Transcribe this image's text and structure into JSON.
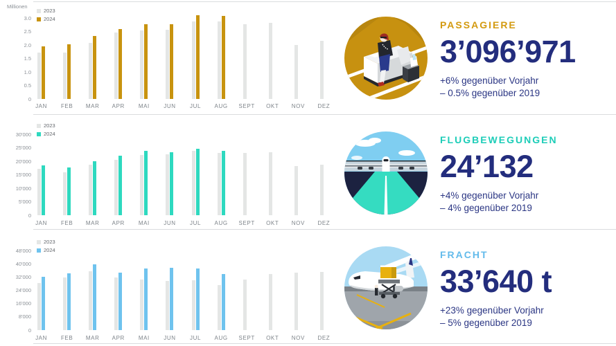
{
  "colors": {
    "bar_2023": "#e4e6e5",
    "gold": "#c8930f",
    "teal": "#2ed9bf",
    "blue": "#6fc3ee",
    "navy": "#232d7d",
    "separator": "#dadcde"
  },
  "chart_data": [
    {
      "type": "bar",
      "id": "passengers",
      "unit_label": "Millionen",
      "legend": [
        "2023",
        "2024"
      ],
      "y_ticks": [
        "3.0",
        "2.5",
        "2.0",
        "1.5",
        "1.0",
        "0.5",
        "0"
      ],
      "y_max": 3.0,
      "bar_color_2024": "#c8930f",
      "categories": [
        "JAN",
        "FEB",
        "MAR",
        "APR",
        "MAI",
        "JUN",
        "JUL",
        "AUG",
        "SEPT",
        "OKT",
        "NOV",
        "DEZ"
      ],
      "series": [
        {
          "name": "2023",
          "values": [
            1.72,
            1.73,
            2.08,
            2.45,
            2.54,
            2.57,
            2.88,
            2.86,
            2.78,
            2.82,
            2.0,
            2.15
          ]
        },
        {
          "name": "2024",
          "values": [
            1.96,
            2.02,
            2.33,
            2.6,
            2.77,
            2.76,
            3.1,
            3.07,
            null,
            null,
            null,
            null
          ]
        }
      ]
    },
    {
      "type": "bar",
      "id": "flight-movements",
      "unit_label": "",
      "legend": [
        "2023",
        "2024"
      ],
      "y_ticks": [
        "30'000",
        "25'000",
        "20'000",
        "15'000",
        "10'000",
        "5'000",
        "0"
      ],
      "y_max": 30000,
      "bar_color_2024": "#2ed9bf",
      "categories": [
        "JAN",
        "FEB",
        "MAR",
        "APR",
        "MAI",
        "JUN",
        "JUL",
        "AUG",
        "SEPT",
        "OKT",
        "NOV",
        "DEZ"
      ],
      "series": [
        {
          "name": "2023",
          "values": [
            17100,
            15800,
            18700,
            20500,
            22200,
            22500,
            23800,
            23000,
            23000,
            23300,
            18200,
            18700
          ]
        },
        {
          "name": "2024",
          "values": [
            18400,
            17800,
            20100,
            22000,
            23800,
            23400,
            24600,
            23800,
            null,
            null,
            null,
            null
          ]
        }
      ]
    },
    {
      "type": "bar",
      "id": "freight",
      "unit_label": "",
      "legend": [
        "2023",
        "2024"
      ],
      "y_ticks": [
        "48'000",
        "40'000",
        "32'000",
        "24'000",
        "16'000",
        "8'000",
        "0"
      ],
      "y_max": 48000,
      "bar_color_2024": "#6fc3ee",
      "categories": [
        "JAN",
        "FEB",
        "MAR",
        "APR",
        "MAI",
        "JUN",
        "JUL",
        "AUG",
        "SEPT",
        "OKT",
        "NOV",
        "DEZ"
      ],
      "series": [
        {
          "name": "2023",
          "values": [
            28400,
            31700,
            35400,
            31700,
            30400,
            29600,
            30000,
            27100,
            30400,
            33800,
            34600,
            35000
          ]
        },
        {
          "name": "2024",
          "values": [
            32000,
            34200,
            39500,
            34600,
            37300,
            37500,
            37200,
            33800,
            null,
            null,
            null,
            null
          ]
        }
      ]
    }
  ],
  "cards": [
    {
      "title": "PASSAGIERE",
      "value": "3’096’971",
      "line1": "+6% gegenüber Vorjahr",
      "line2": "– 0.5% gegenüber 2019",
      "accent": "#d39a10",
      "icon": "passenger-lounge-icon"
    },
    {
      "title": "FLUGBEWEGUNGEN",
      "value": "24’132",
      "line1": "+4% gegenüber Vorjahr",
      "line2": "– 4% gegenüber 2019",
      "accent": "#1dcdb8",
      "icon": "runway-airplane-icon"
    },
    {
      "title": "FRACHT",
      "value": "33’640 t",
      "line1": "+23% gegenüber Vorjahr",
      "line2": "– 5% gegenüber 2019",
      "accent": "#63bbeb",
      "icon": "cargo-plane-icon"
    }
  ]
}
